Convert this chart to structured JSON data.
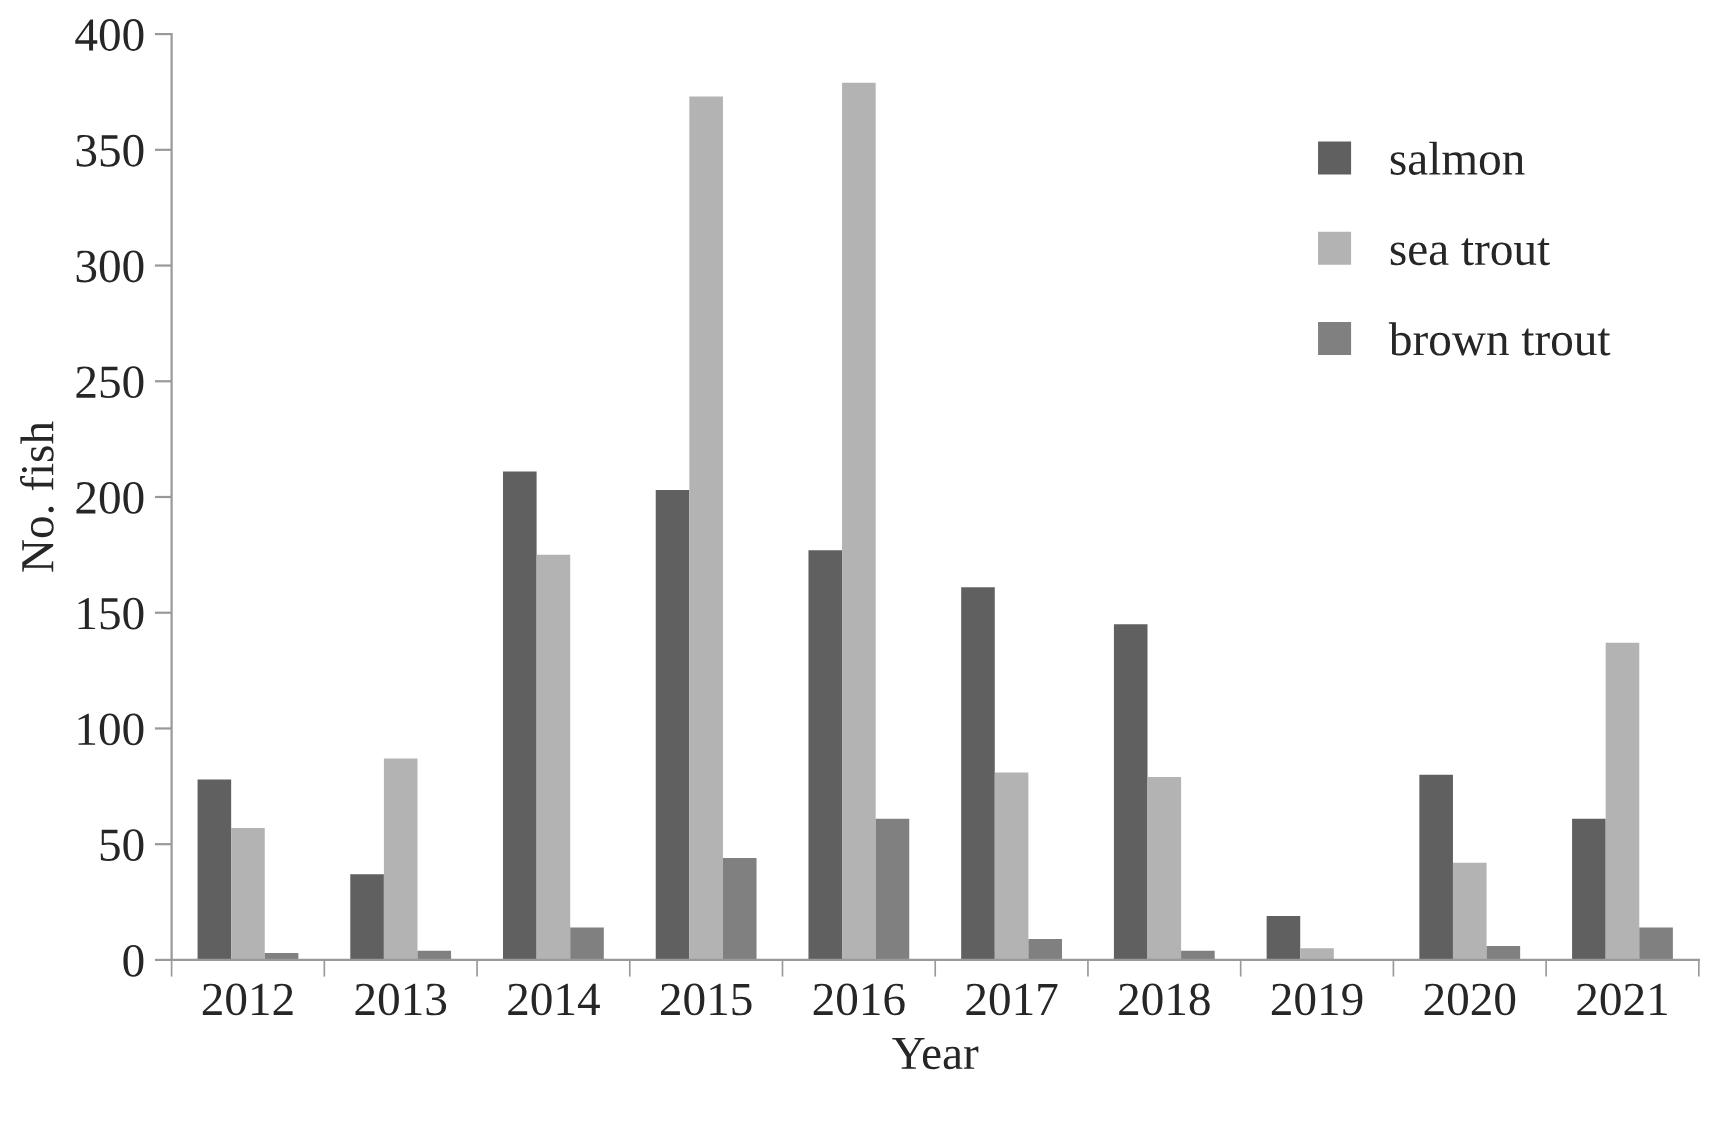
{
  "chart_data": {
    "type": "bar",
    "xlabel": "Year",
    "ylabel": "No. fish",
    "categories": [
      "2012",
      "2013",
      "2014",
      "2015",
      "2016",
      "2017",
      "2018",
      "2019",
      "2020",
      "2021"
    ],
    "series": [
      {
        "name": "salmon",
        "color": "#606060",
        "values": [
          78,
          37,
          211,
          203,
          177,
          161,
          145,
          19,
          80,
          61
        ]
      },
      {
        "name": "sea trout",
        "color": "#b3b3b3",
        "values": [
          57,
          87,
          175,
          373,
          379,
          81,
          79,
          5,
          42,
          137
        ]
      },
      {
        "name": "brown trout",
        "color": "#808080",
        "values": [
          3,
          4,
          14,
          44,
          61,
          9,
          4,
          0,
          6,
          14
        ]
      }
    ],
    "ylim": [
      0,
      400
    ],
    "yticks": [
      0,
      50,
      100,
      150,
      200,
      250,
      300,
      350,
      400
    ],
    "grid": false,
    "legend": "top right"
  }
}
